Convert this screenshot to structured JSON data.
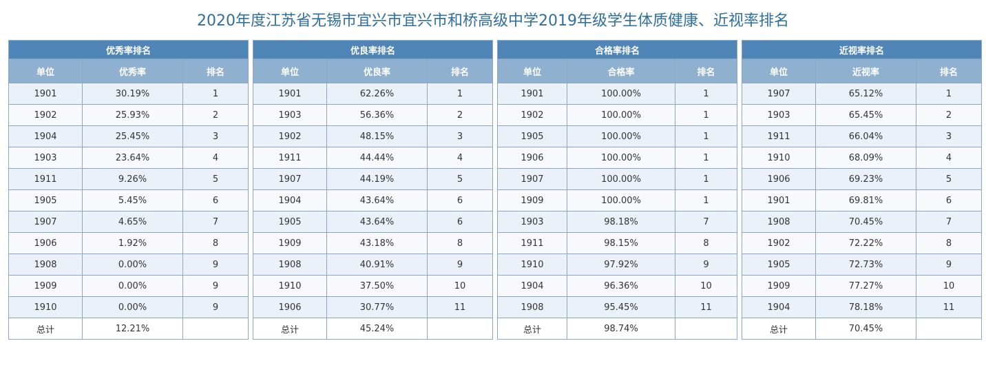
{
  "page_title": "2020年度江苏省无锡市宜兴市宜兴市和桥高级中学2019年级学生体质健康、近视率排名",
  "colors": {
    "title": "#2f6f9e",
    "table_header": "#4f86b7",
    "column_header": "#8fb0cf",
    "row_odd": "#eaf1f9",
    "row_even": "#f7f9fc",
    "border": "#8aa6c2"
  },
  "tables": [
    {
      "title": "优秀率排名",
      "headers": [
        "单位",
        "优秀率",
        "排名"
      ],
      "rows": [
        [
          "1901",
          "30.19%",
          "1"
        ],
        [
          "1902",
          "25.93%",
          "2"
        ],
        [
          "1904",
          "25.45%",
          "3"
        ],
        [
          "1903",
          "23.64%",
          "4"
        ],
        [
          "1911",
          "9.26%",
          "5"
        ],
        [
          "1905",
          "5.45%",
          "6"
        ],
        [
          "1907",
          "4.65%",
          "7"
        ],
        [
          "1906",
          "1.92%",
          "8"
        ],
        [
          "1908",
          "0.00%",
          "9"
        ],
        [
          "1909",
          "0.00%",
          "9"
        ],
        [
          "1910",
          "0.00%",
          "9"
        ]
      ],
      "total": [
        "总计",
        "12.21%",
        ""
      ]
    },
    {
      "title": "优良率排名",
      "headers": [
        "单位",
        "优良率",
        "排名"
      ],
      "rows": [
        [
          "1901",
          "62.26%",
          "1"
        ],
        [
          "1903",
          "56.36%",
          "2"
        ],
        [
          "1902",
          "48.15%",
          "3"
        ],
        [
          "1911",
          "44.44%",
          "4"
        ],
        [
          "1907",
          "44.19%",
          "5"
        ],
        [
          "1904",
          "43.64%",
          "6"
        ],
        [
          "1905",
          "43.64%",
          "6"
        ],
        [
          "1909",
          "43.18%",
          "8"
        ],
        [
          "1908",
          "40.91%",
          "9"
        ],
        [
          "1910",
          "37.50%",
          "10"
        ],
        [
          "1906",
          "30.77%",
          "11"
        ]
      ],
      "total": [
        "总计",
        "45.24%",
        ""
      ]
    },
    {
      "title": "合格率排名",
      "headers": [
        "单位",
        "合格率",
        "排名"
      ],
      "rows": [
        [
          "1901",
          "100.00%",
          "1"
        ],
        [
          "1902",
          "100.00%",
          "1"
        ],
        [
          "1905",
          "100.00%",
          "1"
        ],
        [
          "1906",
          "100.00%",
          "1"
        ],
        [
          "1907",
          "100.00%",
          "1"
        ],
        [
          "1909",
          "100.00%",
          "1"
        ],
        [
          "1903",
          "98.18%",
          "7"
        ],
        [
          "1911",
          "98.15%",
          "8"
        ],
        [
          "1910",
          "97.92%",
          "9"
        ],
        [
          "1904",
          "96.36%",
          "10"
        ],
        [
          "1908",
          "95.45%",
          "11"
        ]
      ],
      "total": [
        "总计",
        "98.74%",
        ""
      ]
    },
    {
      "title": "近视率排名",
      "headers": [
        "单位",
        "近视率",
        "排名"
      ],
      "rows": [
        [
          "1907",
          "65.12%",
          "1"
        ],
        [
          "1903",
          "65.45%",
          "2"
        ],
        [
          "1911",
          "66.04%",
          "3"
        ],
        [
          "1910",
          "68.09%",
          "4"
        ],
        [
          "1906",
          "69.23%",
          "5"
        ],
        [
          "1901",
          "69.81%",
          "6"
        ],
        [
          "1908",
          "70.45%",
          "7"
        ],
        [
          "1902",
          "72.22%",
          "8"
        ],
        [
          "1905",
          "72.73%",
          "9"
        ],
        [
          "1909",
          "77.27%",
          "10"
        ],
        [
          "1904",
          "78.18%",
          "11"
        ]
      ],
      "total": [
        "总计",
        "70.45%",
        ""
      ]
    }
  ]
}
